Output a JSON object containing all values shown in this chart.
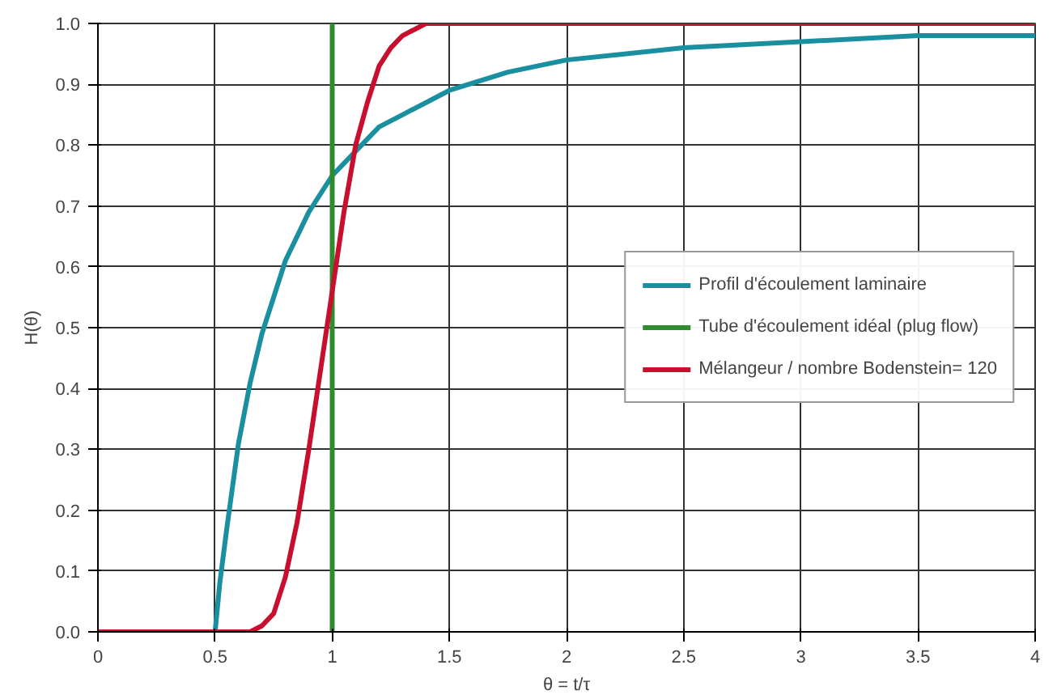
{
  "chart_data": {
    "type": "line",
    "xlabel": "θ = t/τ",
    "ylabel": "H(θ)",
    "xlim": [
      0,
      4
    ],
    "ylim": [
      0,
      1
    ],
    "xticks": [
      0,
      0.5,
      1,
      1.5,
      2,
      2.5,
      3,
      3.5,
      4
    ],
    "yticks": [
      {
        "value": 0,
        "label": "0.0"
      },
      {
        "value": 0.1,
        "label": "0.1"
      },
      {
        "value": 0.2,
        "label": "0.2"
      },
      {
        "value": 0.3,
        "label": "0.3"
      },
      {
        "value": 0.4,
        "label": "0.4"
      },
      {
        "value": 0.5,
        "label": "0.5"
      },
      {
        "value": 0.6,
        "label": "0.6"
      },
      {
        "value": 0.7,
        "label": "0.7"
      },
      {
        "value": 0.8,
        "label": "0.8"
      },
      {
        "value": 0.9,
        "label": "0.9"
      },
      {
        "value": 1,
        "label": "1.0"
      }
    ],
    "grid": true,
    "legend": "right",
    "line_style": "solid",
    "series": [
      {
        "name": "Profil d'écoulement laminaire",
        "color": "#1a8fa0",
        "x": [
          0,
          0.5,
          0.52,
          0.55,
          0.6,
          0.65,
          0.7,
          0.8,
          0.9,
          1.0,
          1.1,
          1.2,
          1.3,
          1.5,
          1.75,
          2.0,
          2.5,
          3.0,
          3.5,
          4.0
        ],
        "values": [
          0,
          0,
          0.08,
          0.17,
          0.31,
          0.41,
          0.49,
          0.61,
          0.69,
          0.75,
          0.79,
          0.83,
          0.85,
          0.89,
          0.92,
          0.94,
          0.96,
          0.97,
          0.98,
          0.98
        ]
      },
      {
        "name": "Tube d'écoulement idéal (plug flow)",
        "color": "#2e8b2e",
        "x": [
          1,
          1
        ],
        "values": [
          0,
          1
        ]
      },
      {
        "name": "Mélangeur / nombre Bodenstein= 120",
        "color": "#c8102e",
        "x": [
          0,
          0.65,
          0.7,
          0.75,
          0.8,
          0.85,
          0.9,
          0.95,
          1.0,
          1.05,
          1.1,
          1.15,
          1.2,
          1.25,
          1.3,
          1.4,
          1.5,
          4.0
        ],
        "values": [
          0,
          0,
          0.01,
          0.03,
          0.09,
          0.18,
          0.3,
          0.43,
          0.56,
          0.69,
          0.8,
          0.87,
          0.93,
          0.96,
          0.98,
          1.0,
          1.0,
          1.0
        ]
      }
    ]
  }
}
